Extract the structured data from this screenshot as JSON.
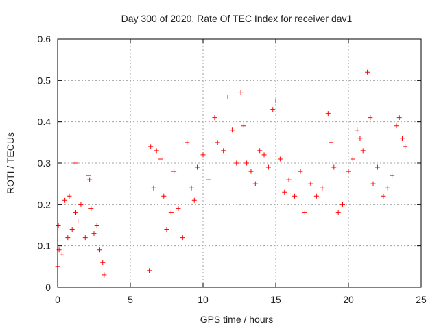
{
  "chart_data": {
    "type": "scatter",
    "title": "Day 300 of 2020, Rate Of TEC Index for receiver dav1",
    "xlabel": "GPS time / hours",
    "ylabel": "ROTI / TECUs",
    "xlim": [
      0,
      25
    ],
    "ylim": [
      0,
      0.6
    ],
    "xticks": [
      "0",
      "5",
      "10",
      "15",
      "20",
      "25"
    ],
    "yticks": [
      "0",
      "0.1",
      "0.2",
      "0.3",
      "0.4",
      "0.5",
      "0.6"
    ],
    "grid": true,
    "legend": "none",
    "marker": "+",
    "color": "#ff0000",
    "series": [
      {
        "x": [
          0.0,
          0.05,
          0.1,
          0.3,
          0.5,
          0.7,
          0.8,
          1.0,
          1.2,
          1.25,
          1.4,
          1.6,
          1.9,
          2.1,
          2.2,
          2.3,
          2.5,
          2.7,
          2.9,
          3.1,
          3.2,
          6.3,
          6.4,
          6.6,
          6.8,
          7.1,
          7.3,
          7.5,
          7.8,
          8.0,
          8.3,
          8.6,
          8.9,
          9.2,
          9.4,
          9.6,
          10.0,
          10.4,
          10.8,
          11.0,
          11.4,
          11.7,
          12.0,
          12.3,
          12.6,
          12.8,
          13.0,
          13.3,
          13.6,
          13.9,
          14.2,
          14.5,
          14.8,
          15.0,
          15.3,
          15.6,
          15.9,
          16.3,
          16.7,
          17.0,
          17.4,
          17.8,
          18.2,
          18.6,
          18.8,
          19.0,
          19.3,
          19.6,
          20.0,
          20.3,
          20.6,
          20.8,
          21.0,
          21.3,
          21.5,
          21.7,
          22.0,
          22.4,
          22.7,
          23.0,
          23.3,
          23.5,
          23.7,
          23.9
        ],
        "y": [
          0.05,
          0.15,
          0.09,
          0.08,
          0.21,
          0.12,
          0.22,
          0.14,
          0.3,
          0.18,
          0.16,
          0.2,
          0.12,
          0.27,
          0.26,
          0.19,
          0.13,
          0.15,
          0.09,
          0.06,
          0.03,
          0.04,
          0.34,
          0.24,
          0.33,
          0.31,
          0.22,
          0.14,
          0.18,
          0.28,
          0.19,
          0.12,
          0.35,
          0.24,
          0.21,
          0.29,
          0.32,
          0.26,
          0.41,
          0.35,
          0.33,
          0.46,
          0.38,
          0.3,
          0.47,
          0.39,
          0.3,
          0.28,
          0.25,
          0.33,
          0.32,
          0.29,
          0.43,
          0.45,
          0.31,
          0.23,
          0.26,
          0.22,
          0.28,
          0.18,
          0.25,
          0.22,
          0.24,
          0.42,
          0.35,
          0.29,
          0.18,
          0.2,
          0.28,
          0.31,
          0.38,
          0.36,
          0.33,
          0.52,
          0.41,
          0.25,
          0.29,
          0.22,
          0.24,
          0.27,
          0.39,
          0.41,
          0.36,
          0.34
        ]
      }
    ]
  }
}
